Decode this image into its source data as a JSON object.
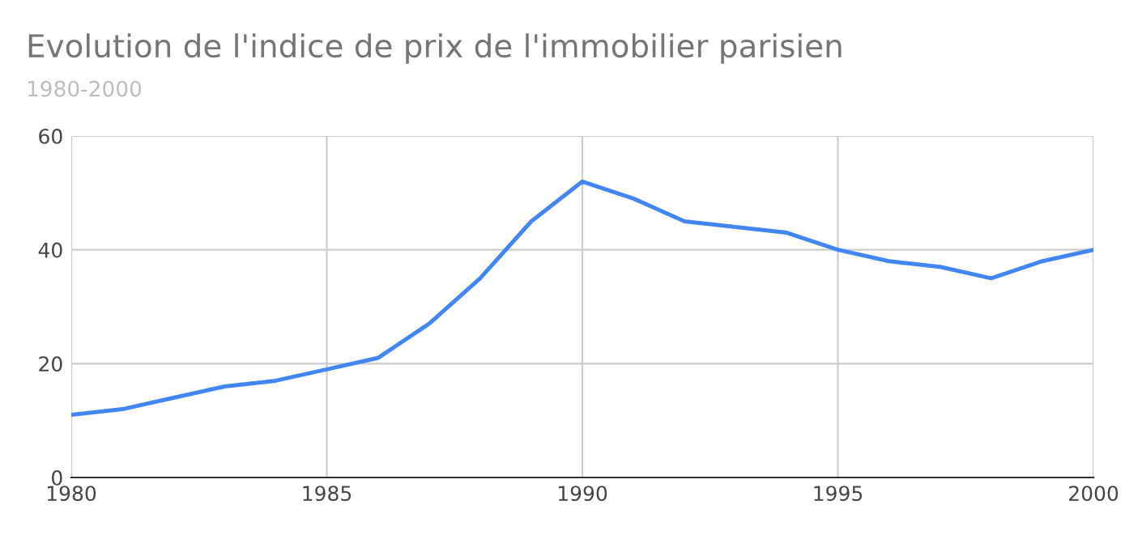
{
  "chart_data": {
    "type": "line",
    "title": "Evolution de l'indice de prix de l'immobilier parisien",
    "subtitle": "1980-2000",
    "x": [
      1980,
      1981,
      1982,
      1983,
      1984,
      1985,
      1986,
      1987,
      1988,
      1989,
      1990,
      1991,
      1992,
      1993,
      1994,
      1995,
      1996,
      1997,
      1998,
      1999,
      2000
    ],
    "series": [
      {
        "color": "#4285f4",
        "values": [
          11,
          12,
          14,
          16,
          17,
          19,
          21,
          27,
          35,
          45,
          52,
          49,
          45,
          44,
          43,
          40,
          38,
          37,
          35,
          38,
          40
        ]
      }
    ],
    "xlim": [
      1980,
      2000
    ],
    "xticks": [
      1980,
      1985,
      1990,
      1995,
      2000
    ],
    "ylim": [
      0,
      60
    ],
    "yticks": [
      0,
      20,
      40,
      60
    ],
    "grid": true,
    "legend": false,
    "marker": "none",
    "line_style": "solid"
  }
}
